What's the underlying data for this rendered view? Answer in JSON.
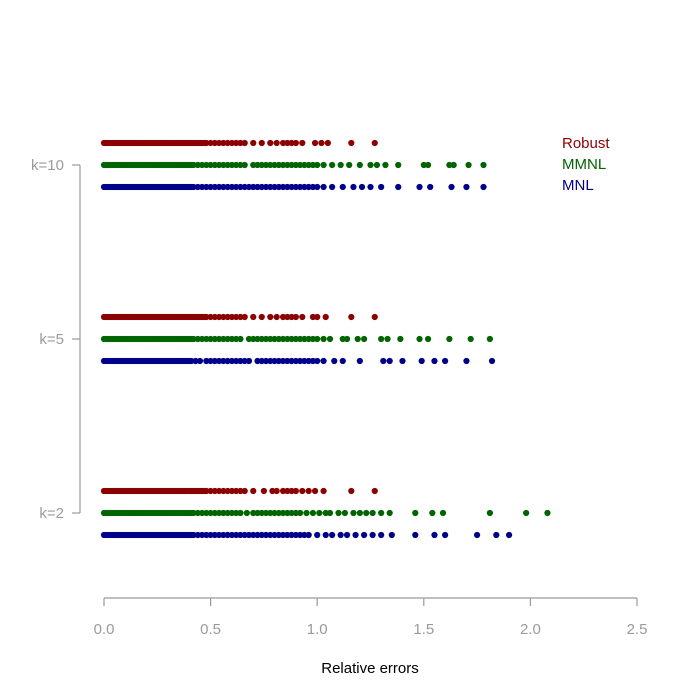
{
  "chart_data": {
    "type": "scatter",
    "xlabel": "Relative errors",
    "ylabel": "",
    "title": "",
    "xlim": [
      0,
      2.5
    ],
    "x_ticks": [
      "0.0",
      "0.5",
      "1.0",
      "1.5",
      "2.0",
      "2.5"
    ],
    "x_tick_values": [
      0,
      0.5,
      1.0,
      1.5,
      2.0,
      2.5
    ],
    "groups": [
      "k=2",
      "k=5",
      "k=10"
    ],
    "legend": {
      "placement": "top-right",
      "entries": [
        "Robust",
        "MMNL",
        "MNL"
      ]
    },
    "colors": {
      "Robust": "#8b0000",
      "MMNL": "#006400",
      "MNL": "#00008b",
      "axis": "#9a9a9a"
    },
    "grid": false,
    "series": [
      {
        "name": "Robust",
        "data": {
          "k=2": [
            0.0,
            0.01,
            0.02,
            0.03,
            0.04,
            0.05,
            0.06,
            0.07,
            0.08,
            0.09,
            0.1,
            0.11,
            0.12,
            0.13,
            0.14,
            0.15,
            0.16,
            0.17,
            0.18,
            0.19,
            0.2,
            0.21,
            0.22,
            0.23,
            0.24,
            0.25,
            0.26,
            0.27,
            0.28,
            0.29,
            0.3,
            0.31,
            0.32,
            0.33,
            0.34,
            0.35,
            0.36,
            0.37,
            0.38,
            0.39,
            0.4,
            0.41,
            0.42,
            0.43,
            0.44,
            0.45,
            0.46,
            0.47,
            0.48,
            0.5,
            0.52,
            0.54,
            0.56,
            0.58,
            0.6,
            0.62,
            0.64,
            0.66,
            0.7,
            0.75,
            0.79,
            0.81,
            0.84,
            0.86,
            0.88,
            0.9,
            0.93,
            0.96,
            0.99,
            1.03,
            1.16,
            1.27
          ],
          "k=5": [
            0.0,
            0.01,
            0.02,
            0.03,
            0.04,
            0.05,
            0.06,
            0.07,
            0.08,
            0.09,
            0.1,
            0.11,
            0.12,
            0.13,
            0.14,
            0.15,
            0.16,
            0.17,
            0.18,
            0.19,
            0.2,
            0.21,
            0.22,
            0.23,
            0.24,
            0.25,
            0.26,
            0.27,
            0.28,
            0.29,
            0.3,
            0.31,
            0.32,
            0.33,
            0.34,
            0.35,
            0.36,
            0.37,
            0.38,
            0.39,
            0.4,
            0.41,
            0.42,
            0.43,
            0.44,
            0.45,
            0.46,
            0.47,
            0.48,
            0.5,
            0.52,
            0.54,
            0.56,
            0.58,
            0.6,
            0.62,
            0.64,
            0.66,
            0.7,
            0.74,
            0.78,
            0.81,
            0.84,
            0.86,
            0.88,
            0.9,
            0.93,
            0.98,
            1.0,
            1.04,
            1.16,
            1.27
          ],
          "k=10": [
            0.0,
            0.01,
            0.02,
            0.03,
            0.04,
            0.05,
            0.06,
            0.07,
            0.08,
            0.09,
            0.1,
            0.11,
            0.12,
            0.13,
            0.14,
            0.15,
            0.16,
            0.17,
            0.18,
            0.19,
            0.2,
            0.21,
            0.22,
            0.23,
            0.24,
            0.25,
            0.26,
            0.27,
            0.28,
            0.29,
            0.3,
            0.31,
            0.32,
            0.33,
            0.34,
            0.35,
            0.36,
            0.37,
            0.38,
            0.39,
            0.4,
            0.41,
            0.42,
            0.43,
            0.44,
            0.45,
            0.46,
            0.47,
            0.48,
            0.5,
            0.52,
            0.54,
            0.56,
            0.58,
            0.6,
            0.62,
            0.64,
            0.66,
            0.7,
            0.74,
            0.78,
            0.81,
            0.84,
            0.86,
            0.88,
            0.9,
            0.93,
            0.99,
            1.02,
            1.05,
            1.16,
            1.27
          ]
        }
      },
      {
        "name": "MMNL",
        "data": {
          "k=2": [
            0.0,
            0.01,
            0.02,
            0.03,
            0.04,
            0.05,
            0.06,
            0.07,
            0.08,
            0.09,
            0.1,
            0.11,
            0.12,
            0.13,
            0.14,
            0.15,
            0.16,
            0.17,
            0.18,
            0.19,
            0.2,
            0.21,
            0.22,
            0.23,
            0.24,
            0.25,
            0.26,
            0.27,
            0.28,
            0.29,
            0.3,
            0.31,
            0.32,
            0.33,
            0.34,
            0.35,
            0.36,
            0.37,
            0.38,
            0.39,
            0.4,
            0.41,
            0.42,
            0.44,
            0.46,
            0.48,
            0.5,
            0.52,
            0.54,
            0.56,
            0.58,
            0.6,
            0.62,
            0.64,
            0.67,
            0.7,
            0.72,
            0.74,
            0.76,
            0.78,
            0.8,
            0.82,
            0.84,
            0.86,
            0.88,
            0.9,
            0.92,
            0.95,
            0.98,
            1.01,
            1.04,
            1.06,
            1.1,
            1.13,
            1.17,
            1.2,
            1.23,
            1.26,
            1.3,
            1.34,
            1.46,
            1.54,
            1.59,
            1.81,
            1.98,
            2.08
          ],
          "k=5": [
            0.0,
            0.01,
            0.02,
            0.03,
            0.04,
            0.05,
            0.06,
            0.07,
            0.08,
            0.09,
            0.1,
            0.11,
            0.12,
            0.13,
            0.14,
            0.15,
            0.16,
            0.17,
            0.18,
            0.19,
            0.2,
            0.21,
            0.22,
            0.23,
            0.24,
            0.25,
            0.26,
            0.27,
            0.28,
            0.29,
            0.3,
            0.31,
            0.32,
            0.33,
            0.34,
            0.35,
            0.36,
            0.37,
            0.38,
            0.39,
            0.4,
            0.41,
            0.42,
            0.44,
            0.46,
            0.48,
            0.5,
            0.52,
            0.54,
            0.56,
            0.58,
            0.6,
            0.62,
            0.64,
            0.68,
            0.7,
            0.72,
            0.74,
            0.76,
            0.78,
            0.8,
            0.82,
            0.84,
            0.86,
            0.88,
            0.9,
            0.92,
            0.94,
            0.96,
            0.98,
            1.0,
            1.03,
            1.06,
            1.12,
            1.14,
            1.19,
            1.22,
            1.3,
            1.33,
            1.39,
            1.48,
            1.52,
            1.62,
            1.72,
            1.81
          ],
          "k=10": [
            0.0,
            0.01,
            0.02,
            0.03,
            0.04,
            0.05,
            0.06,
            0.07,
            0.08,
            0.09,
            0.1,
            0.11,
            0.12,
            0.13,
            0.14,
            0.15,
            0.16,
            0.17,
            0.18,
            0.19,
            0.2,
            0.21,
            0.22,
            0.23,
            0.24,
            0.25,
            0.26,
            0.27,
            0.28,
            0.29,
            0.3,
            0.31,
            0.32,
            0.33,
            0.34,
            0.35,
            0.36,
            0.37,
            0.38,
            0.39,
            0.4,
            0.41,
            0.42,
            0.44,
            0.46,
            0.48,
            0.5,
            0.52,
            0.54,
            0.56,
            0.58,
            0.6,
            0.62,
            0.64,
            0.66,
            0.7,
            0.72,
            0.74,
            0.76,
            0.78,
            0.8,
            0.82,
            0.84,
            0.86,
            0.88,
            0.9,
            0.92,
            0.94,
            0.96,
            0.98,
            1.0,
            1.03,
            1.07,
            1.11,
            1.15,
            1.2,
            1.25,
            1.28,
            1.32,
            1.38,
            1.5,
            1.52,
            1.62,
            1.64,
            1.71,
            1.78
          ]
        }
      },
      {
        "name": "MNL",
        "data": {
          "k=2": [
            0.0,
            0.01,
            0.02,
            0.03,
            0.04,
            0.05,
            0.06,
            0.07,
            0.08,
            0.09,
            0.1,
            0.11,
            0.12,
            0.13,
            0.14,
            0.15,
            0.16,
            0.17,
            0.18,
            0.19,
            0.2,
            0.21,
            0.22,
            0.23,
            0.24,
            0.25,
            0.26,
            0.27,
            0.28,
            0.29,
            0.3,
            0.31,
            0.32,
            0.33,
            0.34,
            0.35,
            0.36,
            0.37,
            0.38,
            0.39,
            0.4,
            0.41,
            0.42,
            0.44,
            0.46,
            0.48,
            0.5,
            0.52,
            0.54,
            0.56,
            0.58,
            0.6,
            0.62,
            0.64,
            0.66,
            0.68,
            0.7,
            0.72,
            0.74,
            0.76,
            0.78,
            0.8,
            0.82,
            0.84,
            0.86,
            0.88,
            0.9,
            0.92,
            0.94,
            0.96,
            1.0,
            1.04,
            1.07,
            1.11,
            1.14,
            1.18,
            1.22,
            1.26,
            1.3,
            1.35,
            1.46,
            1.55,
            1.6,
            1.75,
            1.84,
            1.9
          ],
          "k=5": [
            0.0,
            0.01,
            0.02,
            0.03,
            0.04,
            0.05,
            0.06,
            0.07,
            0.08,
            0.09,
            0.1,
            0.11,
            0.12,
            0.13,
            0.14,
            0.15,
            0.16,
            0.17,
            0.18,
            0.19,
            0.2,
            0.21,
            0.22,
            0.23,
            0.24,
            0.25,
            0.26,
            0.27,
            0.28,
            0.29,
            0.3,
            0.31,
            0.32,
            0.33,
            0.34,
            0.35,
            0.36,
            0.37,
            0.38,
            0.39,
            0.4,
            0.41,
            0.43,
            0.45,
            0.48,
            0.5,
            0.52,
            0.54,
            0.56,
            0.58,
            0.6,
            0.62,
            0.64,
            0.66,
            0.68,
            0.72,
            0.74,
            0.76,
            0.78,
            0.8,
            0.82,
            0.84,
            0.86,
            0.88,
            0.9,
            0.92,
            0.94,
            0.96,
            0.98,
            1.0,
            1.03,
            1.08,
            1.12,
            1.2,
            1.31,
            1.34,
            1.4,
            1.49,
            1.55,
            1.6,
            1.7,
            1.82
          ],
          "k=10": [
            0.0,
            0.01,
            0.02,
            0.03,
            0.04,
            0.05,
            0.06,
            0.07,
            0.08,
            0.09,
            0.1,
            0.11,
            0.12,
            0.13,
            0.14,
            0.15,
            0.16,
            0.17,
            0.18,
            0.19,
            0.2,
            0.21,
            0.22,
            0.23,
            0.24,
            0.25,
            0.26,
            0.27,
            0.28,
            0.29,
            0.3,
            0.31,
            0.32,
            0.33,
            0.34,
            0.35,
            0.36,
            0.37,
            0.38,
            0.39,
            0.4,
            0.41,
            0.42,
            0.44,
            0.46,
            0.48,
            0.5,
            0.52,
            0.54,
            0.56,
            0.58,
            0.6,
            0.62,
            0.64,
            0.66,
            0.68,
            0.7,
            0.72,
            0.74,
            0.76,
            0.78,
            0.8,
            0.82,
            0.84,
            0.86,
            0.88,
            0.9,
            0.92,
            0.94,
            0.96,
            0.98,
            1.0,
            1.03,
            1.07,
            1.12,
            1.17,
            1.21,
            1.25,
            1.3,
            1.38,
            1.48,
            1.53,
            1.63,
            1.7,
            1.78
          ]
        }
      }
    ]
  }
}
